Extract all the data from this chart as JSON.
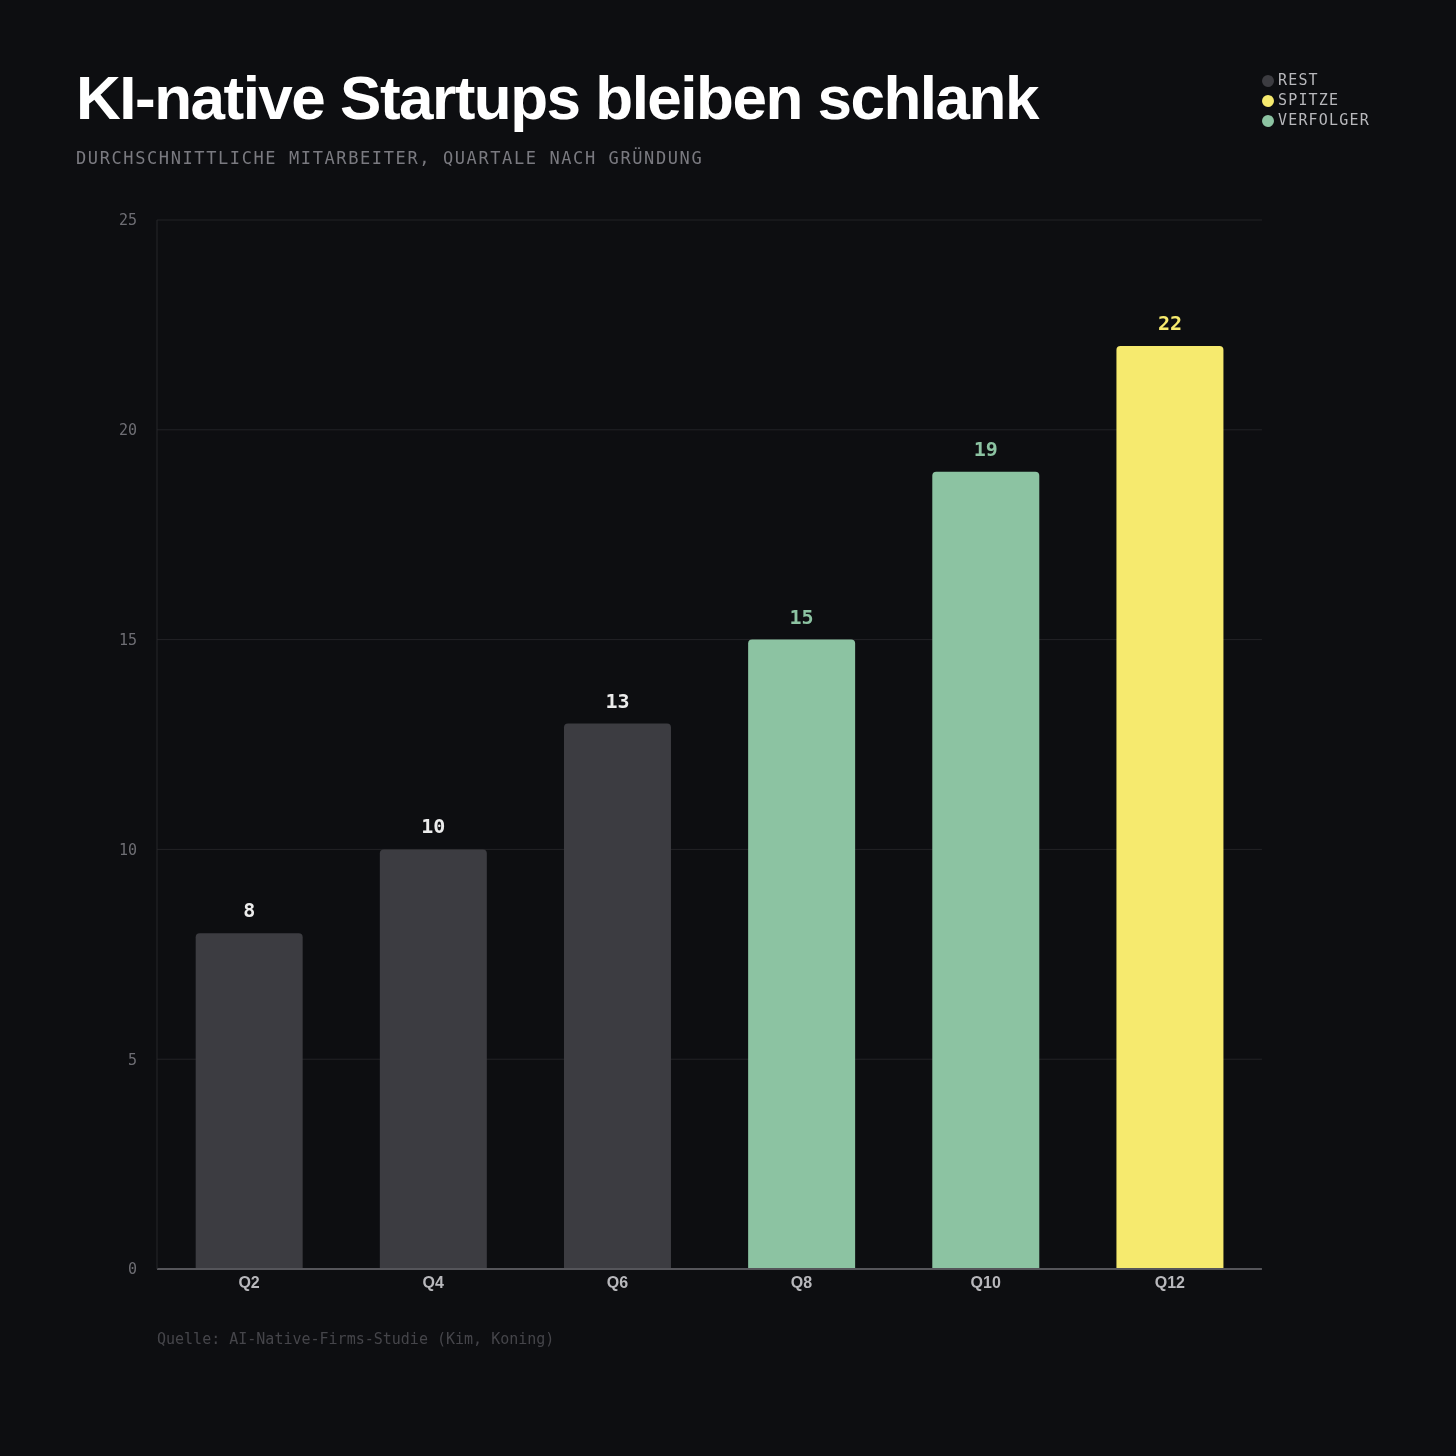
{
  "chart_data": {
    "type": "bar",
    "title": "KI-native Startups bleiben schlank",
    "subtitle": "DURCHSCHNITTLICHE MITARBEITER, QUARTALE NACH GRÜNDUNG",
    "categories": [
      "Q2",
      "Q4",
      "Q6",
      "Q8",
      "Q10",
      "Q12"
    ],
    "series": [
      {
        "name": "REST",
        "color": "#3c3c41",
        "values": [
          8,
          10,
          13,
          null,
          null,
          null
        ]
      },
      {
        "name": "VERFOLGER",
        "color": "#8cc3a2",
        "values": [
          null,
          null,
          null,
          15,
          19,
          null
        ]
      },
      {
        "name": "SPITZE",
        "color": "#f6ea6e",
        "values": [
          null,
          null,
          null,
          null,
          null,
          22
        ]
      }
    ],
    "stacked": true,
    "ylim": [
      0,
      25
    ],
    "yticks": [
      0,
      5,
      10,
      15,
      20,
      25
    ],
    "grid": "y",
    "legend": "top right",
    "data_labels": true,
    "annotations": [
      "Quelle: AI-Native-Firms-Studie (Kim, Koning)"
    ]
  }
}
